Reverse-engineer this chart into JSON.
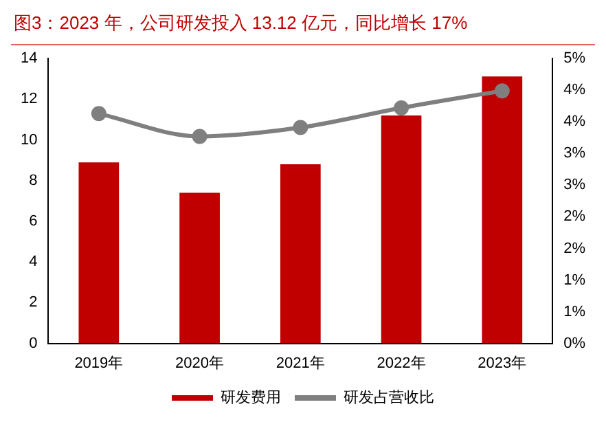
{
  "chart_data": {
    "type": "bar",
    "title": "图3：2023 年，公司研发投入 13.12 亿元，同比增长 17%",
    "categories": [
      "2019年",
      "2020年",
      "2021年",
      "2022年",
      "2023年"
    ],
    "series": [
      {
        "name": "研发费用",
        "color": "#c00000",
        "values": [
          8.9,
          7.4,
          8.8,
          11.2,
          13.12
        ]
      },
      {
        "name": "研发占营收比",
        "type": "line",
        "axis": "y2",
        "color": "#7f7f7f",
        "marker": "circle",
        "values": [
          3.63,
          3.27,
          3.41,
          3.72,
          3.99
        ]
      }
    ],
    "ylim": [
      0,
      14
    ],
    "yticks": [
      0,
      2,
      4,
      6,
      8,
      10,
      12,
      14
    ],
    "y2lim": [
      0,
      4.5
    ],
    "y2ticks": [
      {
        "value": 0,
        "label": "0%"
      },
      {
        "value": 0.5,
        "label": "1%"
      },
      {
        "value": 1,
        "label": "1%"
      },
      {
        "value": 1.5,
        "label": "2%"
      },
      {
        "value": 2,
        "label": "2%"
      },
      {
        "value": 2.5,
        "label": "3%"
      },
      {
        "value": 3,
        "label": "3%"
      },
      {
        "value": 3.5,
        "label": "4%"
      },
      {
        "value": 4,
        "label": "4%"
      },
      {
        "value": 4.5,
        "label": "5%"
      }
    ],
    "grid": false,
    "legend": "bottom"
  }
}
